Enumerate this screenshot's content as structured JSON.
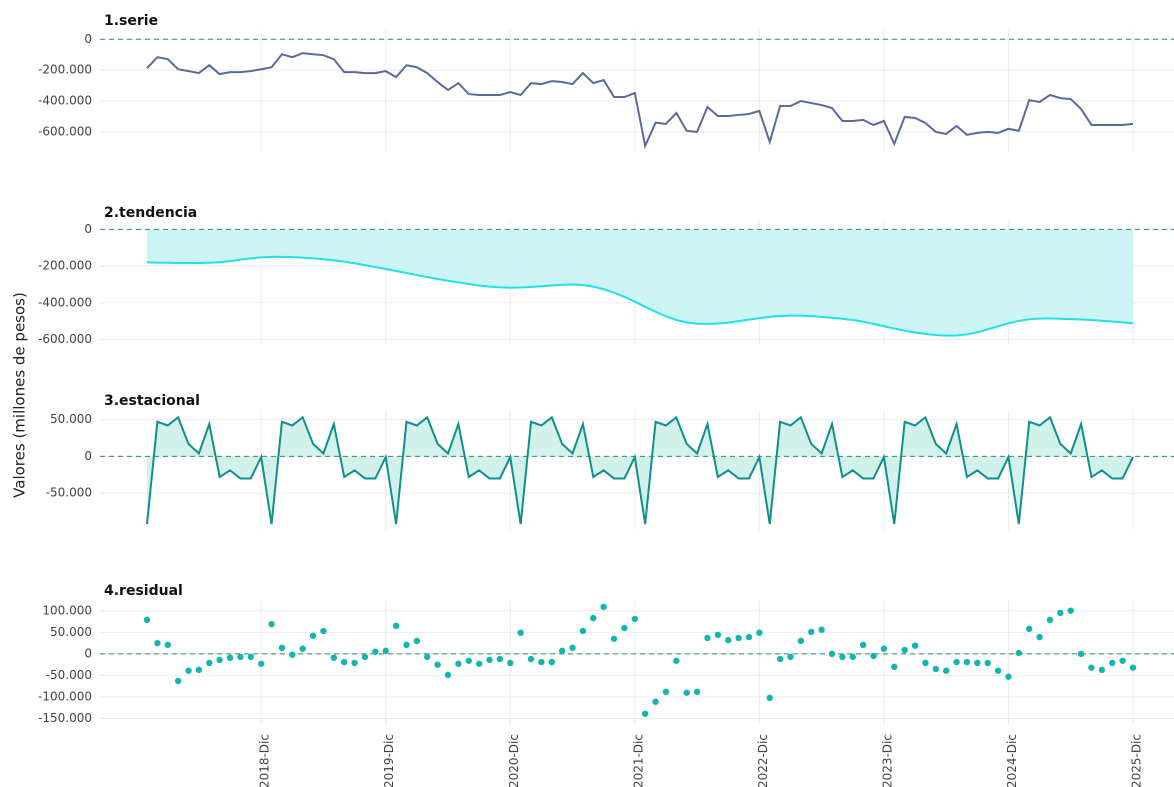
{
  "ylabel": "Valores (millones de pesos)",
  "chart_data": [
    {
      "type": "line",
      "title": "1.serie",
      "color": "#5a6aa0",
      "reference_line": 0,
      "grid": true,
      "ylim": [
        -730000,
        60000
      ],
      "yticks": [
        {
          "value": 0,
          "label": "0"
        },
        {
          "value": -200000,
          "label": "-200.000"
        },
        {
          "value": -400000,
          "label": "-400.000"
        },
        {
          "value": -600000,
          "label": "-600.000"
        }
      ],
      "values": [
        -187000,
        -116000,
        -129000,
        -194000,
        -206000,
        -219000,
        -168000,
        -226000,
        -213000,
        -213000,
        -206000,
        -194000,
        -181000,
        -97000,
        -116000,
        -90000,
        -97000,
        -103000,
        -129000,
        -213000,
        -213000,
        -219000,
        -219000,
        -206000,
        -245000,
        -168000,
        -181000,
        -219000,
        -277000,
        -329000,
        -284000,
        -355000,
        -361000,
        -361000,
        -361000,
        -342000,
        -361000,
        -284000,
        -290000,
        -271000,
        -277000,
        -290000,
        -219000,
        -284000,
        -264000,
        -374000,
        -374000,
        -348000,
        -690000,
        -540000,
        -548000,
        -477000,
        -593000,
        -600000,
        -438000,
        -497000,
        -497000,
        -490000,
        -484000,
        -464000,
        -665000,
        -432000,
        -432000,
        -400000,
        -413000,
        -426000,
        -445000,
        -529000,
        -529000,
        -522000,
        -555000,
        -529000,
        -677000,
        -503000,
        -510000,
        -542000,
        -600000,
        -613000,
        -561000,
        -619000,
        -606000,
        -600000,
        -606000,
        -580000,
        -593000,
        -394000,
        -406000,
        -361000,
        -381000,
        -387000,
        -452000,
        -555000,
        -555000,
        -555000,
        -555000,
        -548000
      ]
    },
    {
      "type": "area",
      "title": "2.tendencia",
      "color": "#22e0e6",
      "fill": "#cdf4f4",
      "reference_line": 0,
      "grid": true,
      "ylim": [
        -630000,
        40000
      ],
      "yticks": [
        {
          "value": 0,
          "label": "0"
        },
        {
          "value": -200000,
          "label": "-200.000"
        },
        {
          "value": -400000,
          "label": "-400.000"
        },
        {
          "value": -600000,
          "label": "-600.000"
        }
      ],
      "values": [
        -180000,
        -181000,
        -182000,
        -183000,
        -183000,
        -183000,
        -182000,
        -179000,
        -173000,
        -165000,
        -158000,
        -153000,
        -150000,
        -150000,
        -151000,
        -154000,
        -158000,
        -163000,
        -169000,
        -176000,
        -185000,
        -195000,
        -205000,
        -216000,
        -227000,
        -238000,
        -249000,
        -260000,
        -270000,
        -280000,
        -289000,
        -298000,
        -306000,
        -312000,
        -316000,
        -318000,
        -317000,
        -314000,
        -310000,
        -306000,
        -302000,
        -300000,
        -303000,
        -312000,
        -326000,
        -345000,
        -368000,
        -394000,
        -422000,
        -449000,
        -474000,
        -494000,
        -507000,
        -514000,
        -515000,
        -513000,
        -508000,
        -500000,
        -492000,
        -484000,
        -476000,
        -472000,
        -470000,
        -470000,
        -473000,
        -477000,
        -482000,
        -487000,
        -494000,
        -503000,
        -515000,
        -528000,
        -540000,
        -552000,
        -562000,
        -570000,
        -576000,
        -579000,
        -578000,
        -572000,
        -561000,
        -545000,
        -528000,
        -512000,
        -499000,
        -490000,
        -486000,
        -485000,
        -487000,
        -489000,
        -491000,
        -494000,
        -498000,
        -502000,
        -507000,
        -512000
      ]
    },
    {
      "type": "area",
      "title": "3.estacional",
      "color": "#10908a",
      "fill": "#d3f1eb",
      "reference_line": 0,
      "grid": true,
      "ylim": [
        -100000,
        63000
      ],
      "yticks": [
        {
          "value": 50000,
          "label": "50.000"
        },
        {
          "value": 0,
          "label": "0"
        },
        {
          "value": -50000,
          "label": "-50.000"
        }
      ],
      "values": [
        -92000,
        47000,
        42000,
        53000,
        17000,
        4000,
        44000,
        -28000,
        -19000,
        -30000,
        -30000,
        -1000,
        -92000,
        47000,
        42000,
        53000,
        17000,
        4000,
        44000,
        -28000,
        -19000,
        -30000,
        -30000,
        -1000,
        -92000,
        47000,
        42000,
        53000,
        17000,
        4000,
        44000,
        -28000,
        -19000,
        -30000,
        -30000,
        -1000,
        -92000,
        47000,
        42000,
        53000,
        17000,
        4000,
        44000,
        -28000,
        -19000,
        -30000,
        -30000,
        -1000,
        -92000,
        47000,
        42000,
        53000,
        17000,
        4000,
        44000,
        -28000,
        -19000,
        -30000,
        -30000,
        -1000,
        -92000,
        47000,
        42000,
        53000,
        17000,
        4000,
        44000,
        -28000,
        -19000,
        -30000,
        -30000,
        -1000,
        -92000,
        47000,
        42000,
        53000,
        17000,
        4000,
        44000,
        -28000,
        -19000,
        -30000,
        -30000,
        -1000,
        -92000,
        47000,
        42000,
        53000,
        17000,
        4000,
        44000,
        -28000,
        -19000,
        -30000,
        -30000,
        -1000
      ]
    },
    {
      "type": "scatter",
      "title": "4.residual",
      "color": "#13b5b0",
      "reference_line": 0,
      "grid": true,
      "ylim": [
        -165000,
        125000
      ],
      "yticks": [
        {
          "value": 100000,
          "label": "100.000"
        },
        {
          "value": 50000,
          "label": "50.000"
        },
        {
          "value": 0,
          "label": "0"
        },
        {
          "value": -50000,
          "label": "-50.000"
        },
        {
          "value": -100000,
          "label": "-100.000"
        },
        {
          "value": -150000,
          "label": "-150.000"
        }
      ],
      "categories": [
        null,
        null,
        null,
        null,
        null,
        null,
        null,
        null,
        null,
        null,
        null,
        "2018-Dic",
        null,
        null,
        null,
        null,
        null,
        null,
        null,
        null,
        null,
        null,
        null,
        "2019-Dic",
        null,
        null,
        null,
        null,
        null,
        null,
        null,
        null,
        null,
        null,
        null,
        "2020-Dic",
        null,
        null,
        null,
        null,
        null,
        null,
        null,
        null,
        null,
        null,
        null,
        "2021-Dic",
        null,
        null,
        null,
        null,
        null,
        null,
        null,
        null,
        null,
        null,
        null,
        "2022-Dic",
        null,
        null,
        null,
        null,
        null,
        null,
        null,
        null,
        null,
        null,
        null,
        "2023-Dic",
        null,
        null,
        null,
        null,
        null,
        null,
        null,
        null,
        null,
        null,
        null,
        "2024-Dic",
        null,
        null,
        null,
        null,
        null,
        null,
        null,
        null,
        null,
        null,
        null,
        "2025-Dic"
      ],
      "values": [
        79000,
        25000,
        21000,
        -63000,
        -39000,
        -37000,
        -21000,
        -14000,
        -9000,
        -7000,
        -7000,
        -23000,
        69000,
        14000,
        -2000,
        12000,
        42000,
        53000,
        -9000,
        -19000,
        -21000,
        -7000,
        5000,
        7000,
        65000,
        21000,
        30000,
        -7000,
        -25000,
        -49000,
        -23000,
        -16000,
        -23000,
        -14000,
        -12000,
        -21000,
        49000,
        -12000,
        -19000,
        -19000,
        7000,
        14000,
        53000,
        83000,
        109000,
        35000,
        60000,
        81000,
        -139000,
        -111000,
        -88000,
        -16000,
        -90000,
        -88000,
        37000,
        44000,
        32000,
        37000,
        39000,
        49000,
        -102000,
        -12000,
        -7000,
        30000,
        51000,
        56000,
        0,
        -7000,
        -7000,
        21000,
        -5000,
        12000,
        -30000,
        9000,
        19000,
        -21000,
        -35000,
        -39000,
        -19000,
        -19000,
        -21000,
        -21000,
        -39000,
        -53000,
        2000,
        58000,
        39000,
        79000,
        95000,
        100000,
        0,
        -32000,
        -37000,
        -21000,
        -16000,
        -32000
      ]
    }
  ]
}
